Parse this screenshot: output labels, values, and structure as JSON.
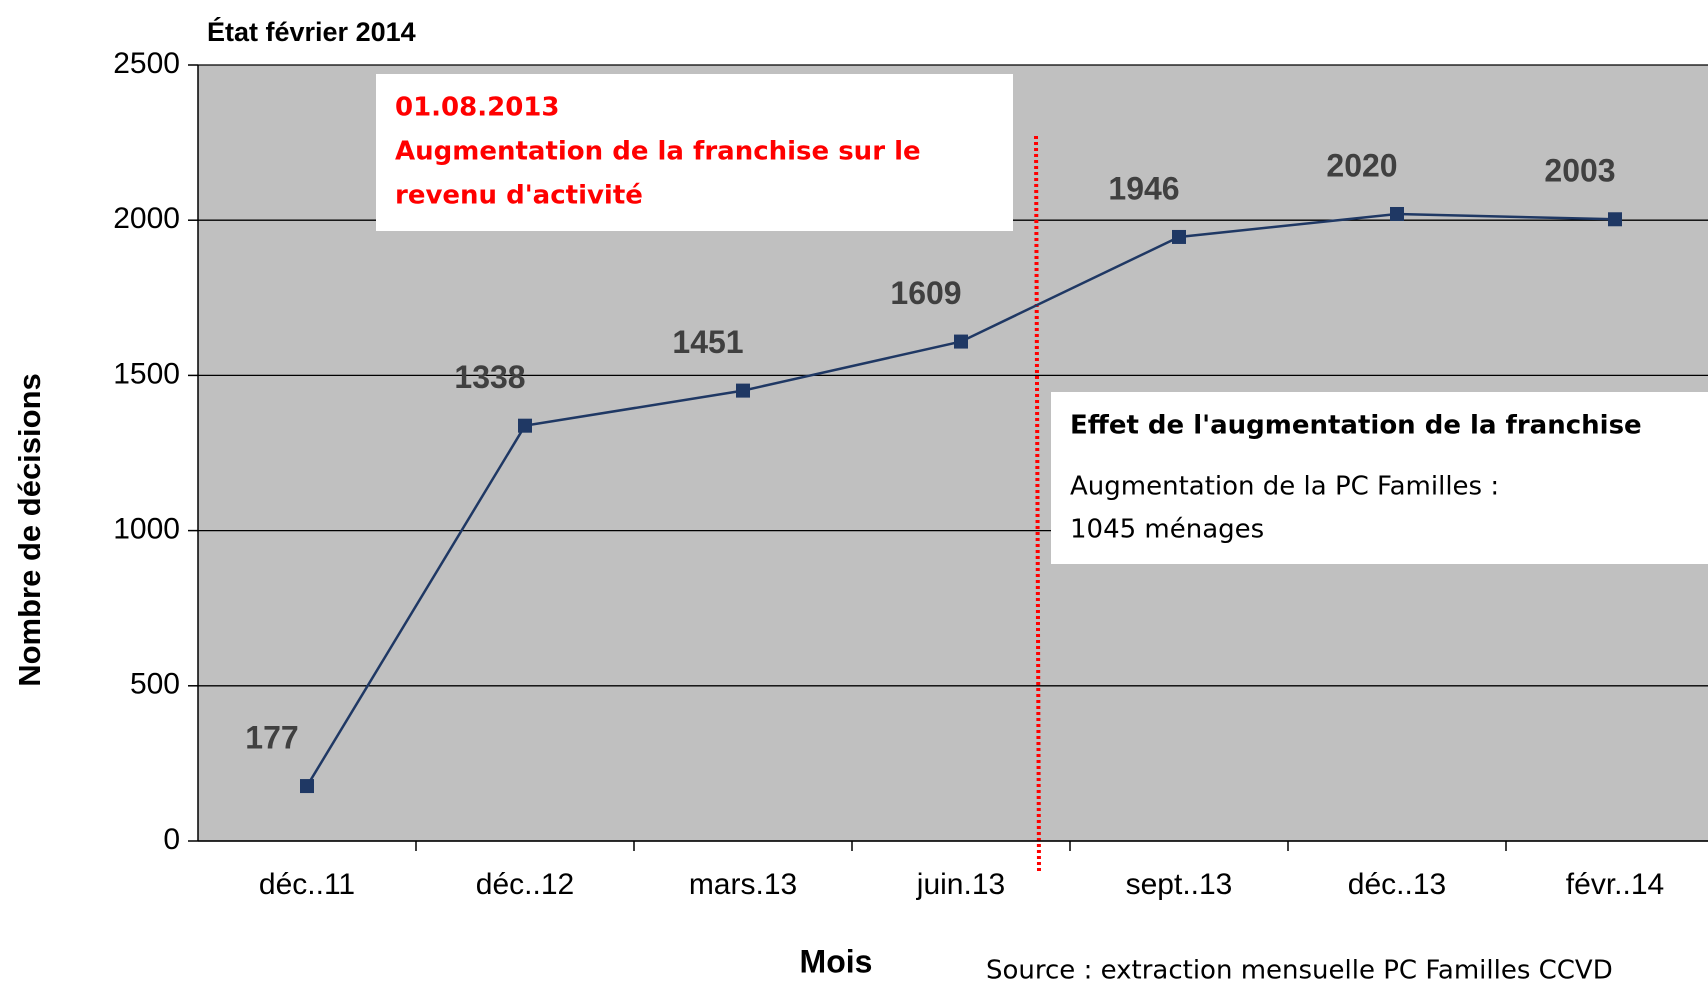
{
  "chart_data": {
    "type": "line",
    "title": "État février 2014",
    "y_label": "Nombre de décisions",
    "x_label": "Mois",
    "source": "Source : extraction mensuelle PC Familles CCVD",
    "categories": [
      "déc..11",
      "déc..12",
      "mars.13",
      "juin.13",
      "sept..13",
      "déc..13",
      "févr..14"
    ],
    "series": [
      {
        "name": "PC Familles",
        "color": "#1f3864",
        "values": [
          177,
          1338,
          1451,
          1609,
          1946,
          2020,
          2003
        ]
      }
    ],
    "ylim": [
      0,
      2500
    ],
    "yticks": [
      0,
      500,
      1000,
      1500,
      2000,
      2500
    ],
    "grid": true,
    "annotations": [
      {
        "date": "01.08.2013",
        "lines": [
          "Augmentation de la franchise sur le",
          "revenu d'activité"
        ]
      },
      {
        "heading": "Effet de l'augmentation de la franchise",
        "lines": [
          "Augmentation de la PC Familles :",
          "1045 ménages"
        ]
      }
    ]
  }
}
